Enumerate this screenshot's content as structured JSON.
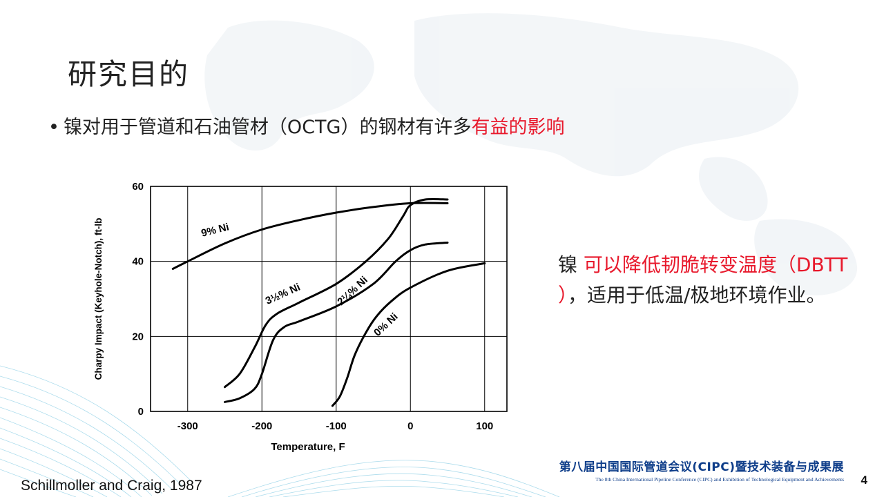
{
  "slide": {
    "title": "研究目的",
    "bullet": {
      "marker": "•",
      "text": "镍对用于管道和石油管材（OCTG）的钢材有许多",
      "highlight": "有益的影响"
    },
    "note": {
      "lead": "镍 ",
      "red": "可以降低韧脆转变温度（DBTT ）",
      "rest": "，适用于低温/极地环境作业。"
    },
    "citation": "Schillmoller and Craig, 1987",
    "conference": {
      "cn": "第八届中国国际管道会议(CIPC)暨技术装备与成果展",
      "en": "The 8th China International Pipeline Conference (CIPC) and Exhibition of Technological Equipment and Achievements"
    },
    "page_number": "4"
  },
  "colors": {
    "highlight": "#e8192c",
    "conference": "#0f3e8a",
    "curve": "#000000"
  },
  "chart_data": {
    "type": "line",
    "xlabel": "Temperature, F",
    "ylabel": "Charpy Impact (Keyhole-Notch), ft-lb",
    "xlim": [
      -350,
      130
    ],
    "ylim": [
      0,
      60
    ],
    "xticks": [
      -300,
      -200,
      -100,
      0,
      100
    ],
    "yticks": [
      0,
      20,
      40,
      60
    ],
    "grid": true,
    "series": [
      {
        "name": "9% Ni",
        "x": [
          -320,
          -300,
          -250,
          -200,
          -150,
          -100,
          -50,
          0,
          50
        ],
        "y": [
          38,
          40,
          44.8,
          48.5,
          51,
          53,
          54.5,
          55.5,
          55.5
        ]
      },
      {
        "name": "3½% Ni",
        "x": [
          -250,
          -230,
          -210,
          -195,
          -180,
          -150,
          -100,
          -60,
          -30,
          -10,
          0,
          20,
          50
        ],
        "y": [
          6.5,
          10,
          17,
          23,
          26,
          29,
          34,
          40,
          46,
          52,
          55,
          56.5,
          56.5
        ]
      },
      {
        "name": "2¼% Ni",
        "x": [
          -250,
          -230,
          -210,
          -200,
          -185,
          -170,
          -150,
          -100,
          -50,
          -20,
          0,
          20,
          50
        ],
        "y": [
          2.5,
          3.5,
          6,
          10,
          19,
          22.5,
          24,
          28,
          34,
          40,
          43,
          44.5,
          45
        ]
      },
      {
        "name": "0% Ni",
        "x": [
          -105,
          -95,
          -85,
          -75,
          -60,
          -45,
          -25,
          0,
          50,
          100
        ],
        "y": [
          1.5,
          4,
          9,
          15,
          21,
          25.5,
          29.5,
          33,
          37.5,
          39.5
        ]
      }
    ],
    "curve_labels": [
      {
        "series": "9% Ni",
        "text": "9% Ni",
        "at": [
          -262,
          47.5
        ],
        "angle": -14
      },
      {
        "series": "3½% Ni",
        "text": "3½% Ni",
        "at": [
          -170,
          30.5
        ],
        "angle": -24
      },
      {
        "series": "2¼% Ni",
        "text": "2¼% Ni",
        "at": [
          -75,
          31.5
        ],
        "angle": -43
      },
      {
        "series": "0% Ni",
        "text": "0% Ni",
        "at": [
          -30,
          22.5
        ],
        "angle": -43
      }
    ]
  }
}
